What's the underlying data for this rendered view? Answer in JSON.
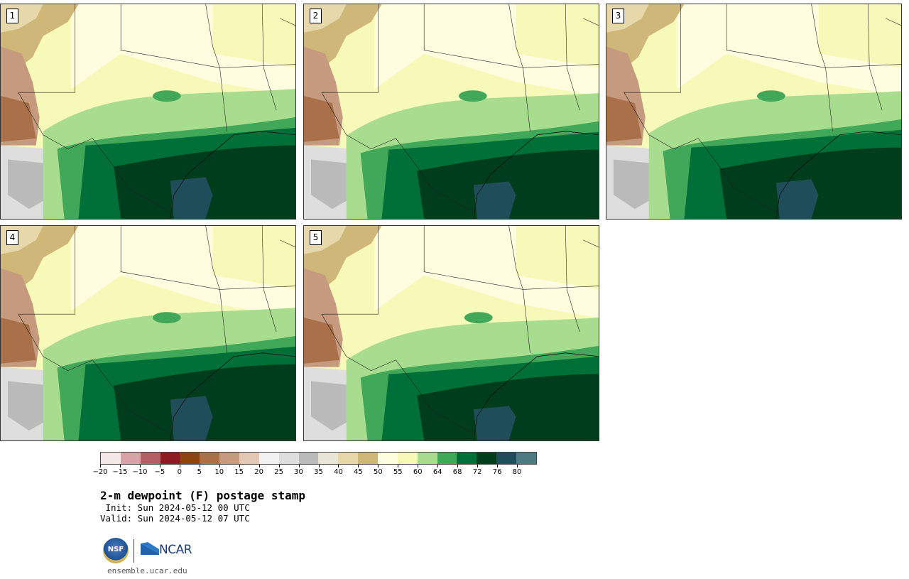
{
  "panels": [
    {
      "label": "1"
    },
    {
      "label": "2"
    },
    {
      "label": "3"
    },
    {
      "label": "4"
    },
    {
      "label": "5"
    }
  ],
  "colorbar": {
    "colors": [
      "#f5e8e8",
      "#d6a3a8",
      "#b35f66",
      "#8c1c24",
      "#8b4513",
      "#a97049",
      "#c59a7e",
      "#e4c8b6",
      "#f2f2f2",
      "#dedede",
      "#bababa",
      "#e8e6d6",
      "#e6d8aa",
      "#cfb77a",
      "#fffde0",
      "#f7f9b8",
      "#a8dd90",
      "#41a85a",
      "#007038",
      "#003d1c",
      "#1f4e5a",
      "#4e7a80"
    ],
    "tick_labels": [
      "−20",
      "−15",
      "−10",
      "−5",
      "0",
      "5",
      "10",
      "15",
      "20",
      "25",
      "30",
      "35",
      "40",
      "45",
      "50",
      "55",
      "60",
      "64",
      "68",
      "72",
      "76",
      "80"
    ]
  },
  "title": "2-m dewpoint (F) postage stamp",
  "init": " Init: Sun 2024-05-12 00 UTC",
  "valid": "Valid: Sun 2024-05-12 07 UTC",
  "logos": {
    "nsf": "NSF",
    "ncar": "NCAR"
  },
  "site": "ensemble.ucar.edu"
}
